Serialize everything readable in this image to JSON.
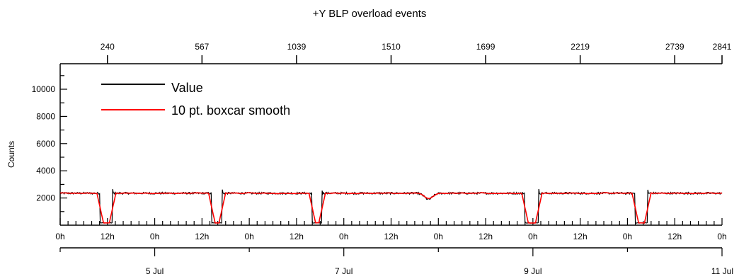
{
  "chart_data": {
    "type": "line",
    "title": "+Y BLP overload events",
    "ylabel": "Counts",
    "xlabel": "",
    "ylim": [
      0,
      11500
    ],
    "y_ticks": [
      2000,
      4000,
      6000,
      8000,
      10000
    ],
    "x_axis": {
      "kind": "time",
      "start": "2024-07-04T00:00:00",
      "end": "2024-07-11T00:00:00",
      "hour_ticks": [
        "0h",
        "12h",
        "0h",
        "12h",
        "0h",
        "12h",
        "0h",
        "12h",
        "0h",
        "12h",
        "0h",
        "12h",
        "0h",
        "12h",
        "0h"
      ],
      "date_ticks": [
        {
          "label": "5 Jul",
          "t": "2024-07-05T00:00:00"
        },
        {
          "label": "7 Jul",
          "t": "2024-07-07T00:00:00"
        },
        {
          "label": "9 Jul",
          "t": "2024-07-09T00:00:00"
        },
        {
          "label": "11 Jul",
          "t": "2024-07-11T00:00:00"
        }
      ]
    },
    "top_axis_labels": [
      {
        "label": "240",
        "t": "2024-07-04T12:00:00"
      },
      {
        "label": "567",
        "t": "2024-07-05T12:00:00"
      },
      {
        "label": "1039",
        "t": "2024-07-06T12:00:00"
      },
      {
        "label": "1510",
        "t": "2024-07-07T12:00:00"
      },
      {
        "label": "1699",
        "t": "2024-07-08T12:00:00"
      },
      {
        "label": "2219",
        "t": "2024-07-09T12:00:00"
      },
      {
        "label": "2739",
        "t": "2024-07-10T12:00:00"
      },
      {
        "label": "2841",
        "t": "2024-07-11T00:00:00"
      }
    ],
    "baseline": 2350,
    "gaps": [
      {
        "start": "2024-07-04T10:05:00",
        "end": "2024-07-04T13:10:00"
      },
      {
        "start": "2024-07-05T14:30:00",
        "end": "2024-07-05T17:00:00"
      },
      {
        "start": "2024-07-06T16:00:00",
        "end": "2024-07-06T18:20:00"
      },
      {
        "start": "2024-07-08T22:00:00",
        "end": "2024-07-09T01:20:00"
      },
      {
        "start": "2024-07-10T02:00:00",
        "end": "2024-07-10T05:00:00"
      }
    ],
    "dip": {
      "t": "2024-07-07T21:30:00",
      "value": 1900
    },
    "legend_placement": "top-left",
    "series": [
      {
        "name": "Value",
        "color": "#000000"
      },
      {
        "name": "10 pt. boxcar smooth",
        "color": "#ff0000"
      }
    ]
  }
}
